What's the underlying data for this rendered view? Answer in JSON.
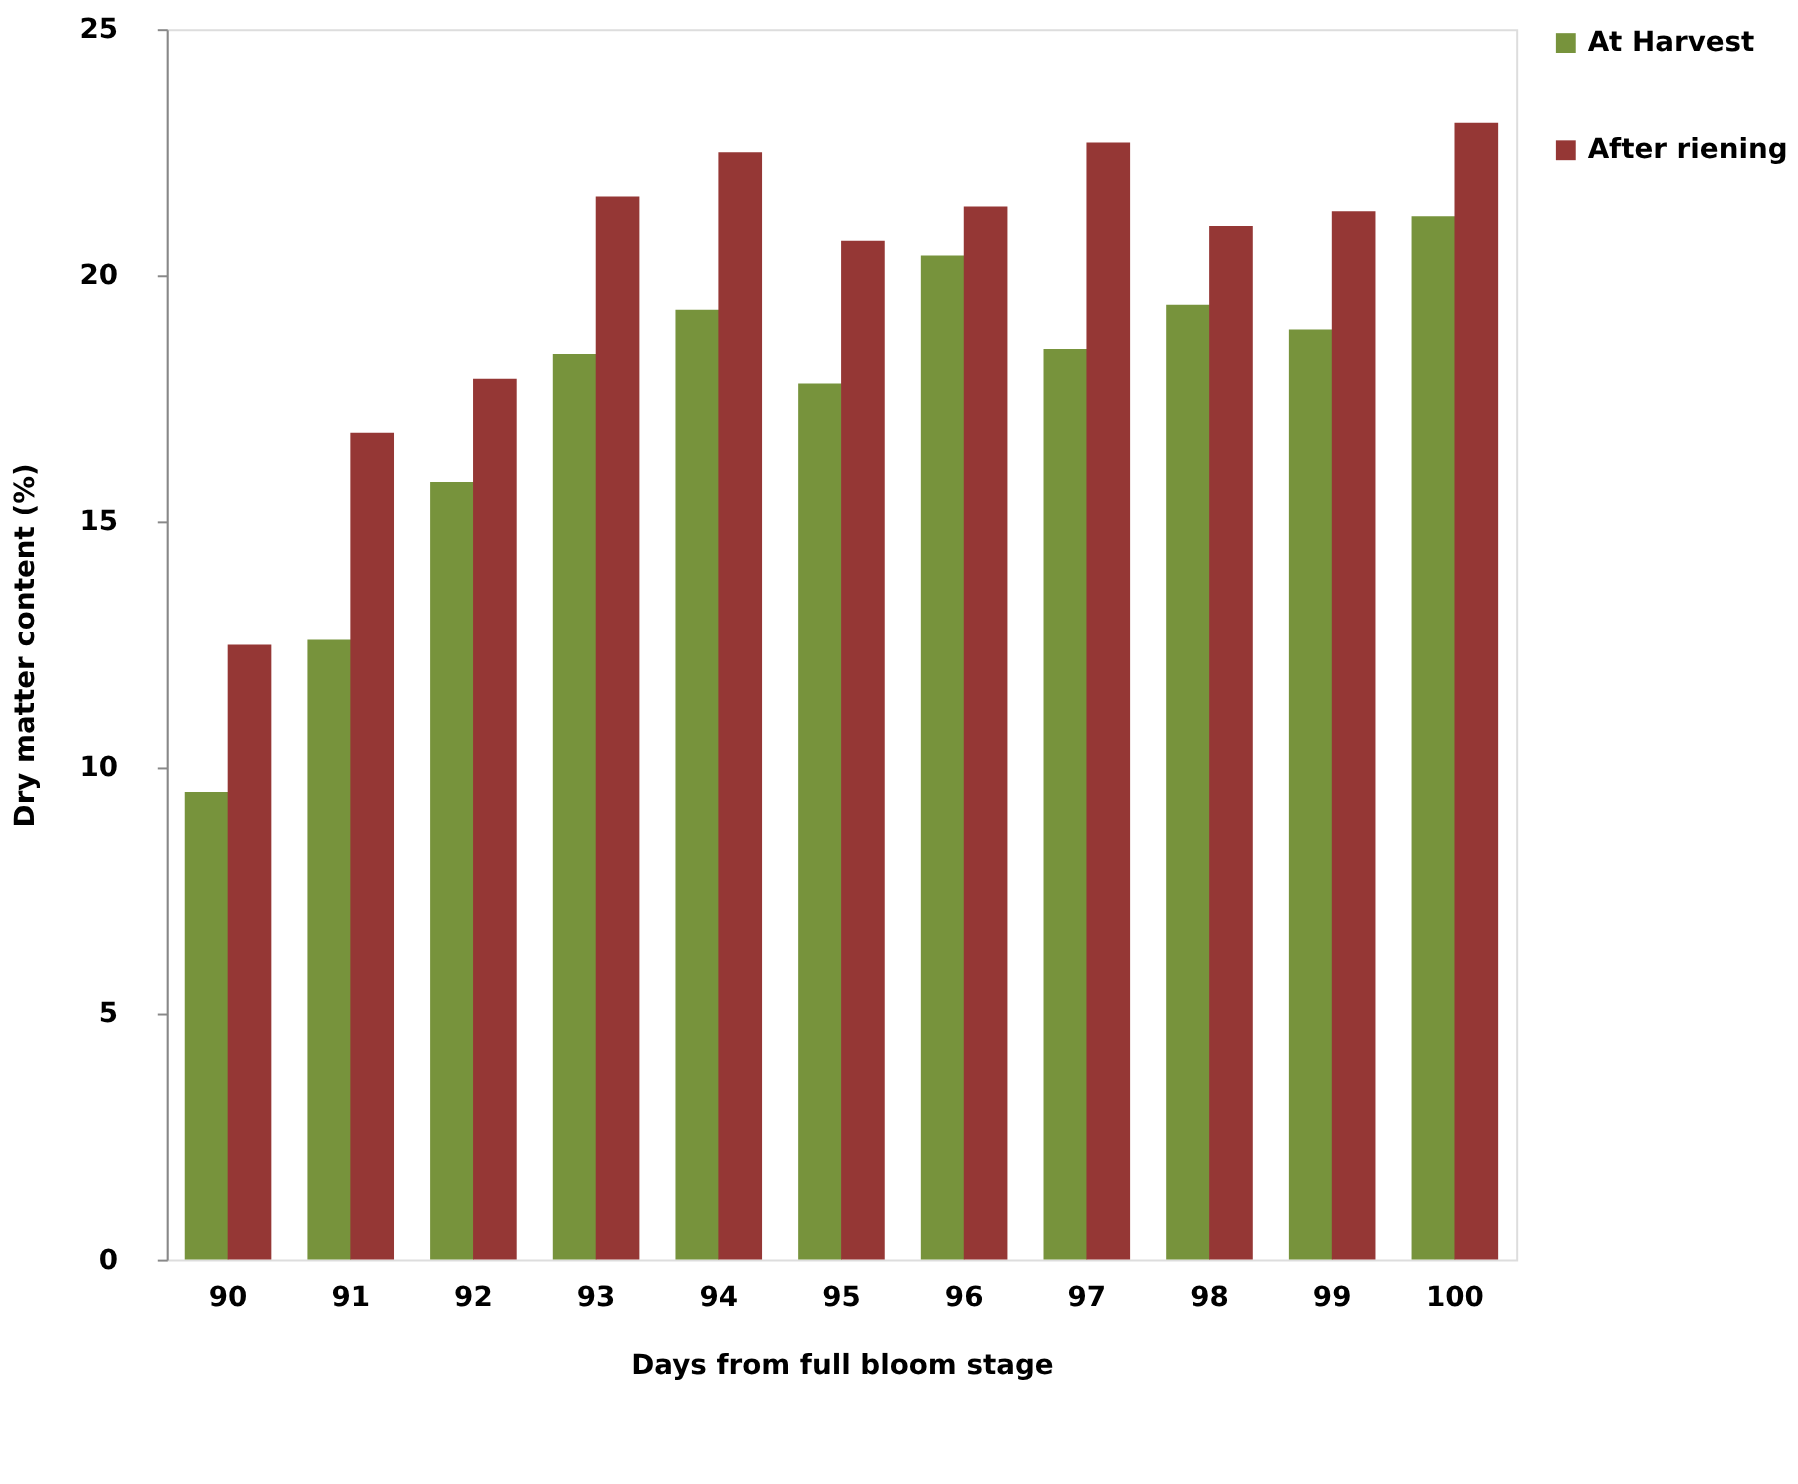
{
  "chart_data": {
    "type": "bar",
    "xlabel": "Days from full bloom stage",
    "ylabel": "Dry matter content (%)",
    "categories": [
      "90",
      "91",
      "92",
      "93",
      "94",
      "95",
      "96",
      "97",
      "98",
      "99",
      "100"
    ],
    "series": [
      {
        "name": "At Harvest",
        "color": "#77933c",
        "values": [
          9.5,
          12.6,
          15.8,
          18.4,
          19.3,
          17.8,
          20.4,
          18.5,
          19.4,
          18.9,
          21.2
        ]
      },
      {
        "name": "After riening",
        "color": "#953735",
        "values": [
          12.5,
          16.8,
          17.9,
          21.6,
          22.5,
          20.7,
          21.4,
          22.7,
          21.0,
          21.3,
          23.1
        ]
      }
    ],
    "ylim": [
      0,
      25
    ],
    "yticks": [
      0,
      5,
      10,
      15,
      20,
      25
    ],
    "grid": false,
    "legend": "right"
  }
}
